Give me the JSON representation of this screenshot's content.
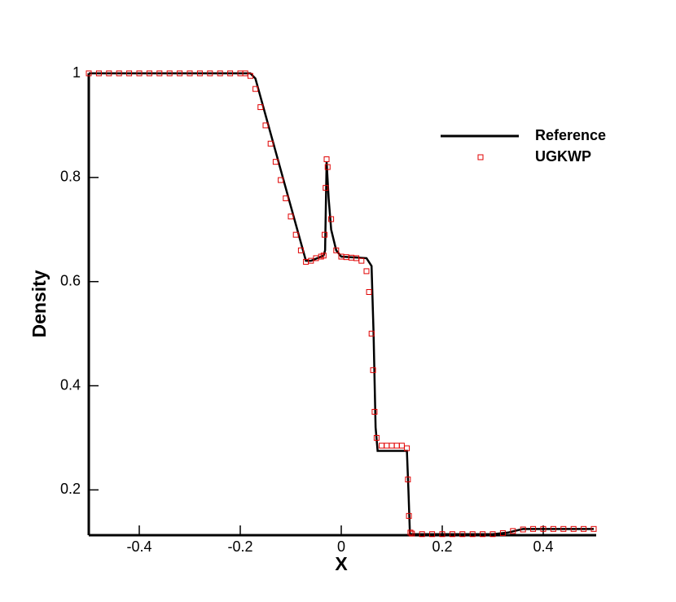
{
  "chart_data": {
    "type": "line",
    "x_label": "X",
    "y_label": "Density",
    "xlim": [
      -0.5,
      0.5
    ],
    "ylim": [
      0.113,
      1
    ],
    "xticks": [
      -0.4,
      -0.2,
      0,
      0.2,
      0.4
    ],
    "yticks": [
      0.2,
      0.4,
      0.6,
      0.8,
      1
    ],
    "series": [
      {
        "name": "Reference",
        "type": "line",
        "color": "#000000",
        "x": [
          -0.5,
          -0.18,
          -0.17,
          -0.07,
          -0.06,
          -0.035,
          -0.032,
          -0.029,
          -0.025,
          -0.02,
          -0.01,
          0,
          0.05,
          0.06,
          0.064,
          0.068,
          0.072,
          0.13,
          0.133,
          0.136,
          0.3,
          0.33,
          0.36,
          0.5
        ],
        "values": [
          1,
          1,
          0.99,
          0.64,
          0.64,
          0.65,
          0.66,
          0.83,
          0.76,
          0.7,
          0.66,
          0.648,
          0.645,
          0.63,
          0.5,
          0.32,
          0.275,
          0.275,
          0.2,
          0.115,
          0.115,
          0.118,
          0.125,
          0.125
        ]
      },
      {
        "name": "UGKWP",
        "type": "scatter",
        "color": "#e00000",
        "x": [
          -0.5,
          -0.48,
          -0.46,
          -0.44,
          -0.42,
          -0.4,
          -0.38,
          -0.36,
          -0.34,
          -0.32,
          -0.3,
          -0.28,
          -0.26,
          -0.24,
          -0.22,
          -0.2,
          -0.19,
          -0.18,
          -0.17,
          -0.16,
          -0.15,
          -0.14,
          -0.13,
          -0.12,
          -0.11,
          -0.1,
          -0.09,
          -0.08,
          -0.07,
          -0.06,
          -0.05,
          -0.04,
          -0.035,
          -0.033,
          -0.031,
          -0.029,
          -0.027,
          -0.02,
          -0.01,
          0,
          0.01,
          0.02,
          0.03,
          0.04,
          0.05,
          0.055,
          0.06,
          0.063,
          0.066,
          0.07,
          0.08,
          0.09,
          0.1,
          0.11,
          0.12,
          0.13,
          0.132,
          0.134,
          0.137,
          0.14,
          0.16,
          0.18,
          0.2,
          0.22,
          0.24,
          0.26,
          0.28,
          0.3,
          0.32,
          0.34,
          0.36,
          0.38,
          0.4,
          0.42,
          0.44,
          0.46,
          0.48,
          0.5
        ],
        "values": [
          1,
          1,
          1,
          1,
          1,
          1,
          1,
          1,
          1,
          1,
          1,
          1,
          1,
          1,
          1,
          1,
          1,
          0.995,
          0.97,
          0.935,
          0.9,
          0.865,
          0.83,
          0.795,
          0.76,
          0.725,
          0.69,
          0.66,
          0.638,
          0.64,
          0.645,
          0.648,
          0.65,
          0.69,
          0.78,
          0.835,
          0.82,
          0.72,
          0.66,
          0.648,
          0.647,
          0.646,
          0.645,
          0.64,
          0.62,
          0.58,
          0.5,
          0.43,
          0.35,
          0.3,
          0.285,
          0.285,
          0.285,
          0.285,
          0.285,
          0.28,
          0.22,
          0.15,
          0.118,
          0.116,
          0.115,
          0.115,
          0.115,
          0.115,
          0.115,
          0.115,
          0.115,
          0.115,
          0.117,
          0.121,
          0.124,
          0.125,
          0.125,
          0.125,
          0.125,
          0.125,
          0.125,
          0.125
        ]
      }
    ]
  }
}
